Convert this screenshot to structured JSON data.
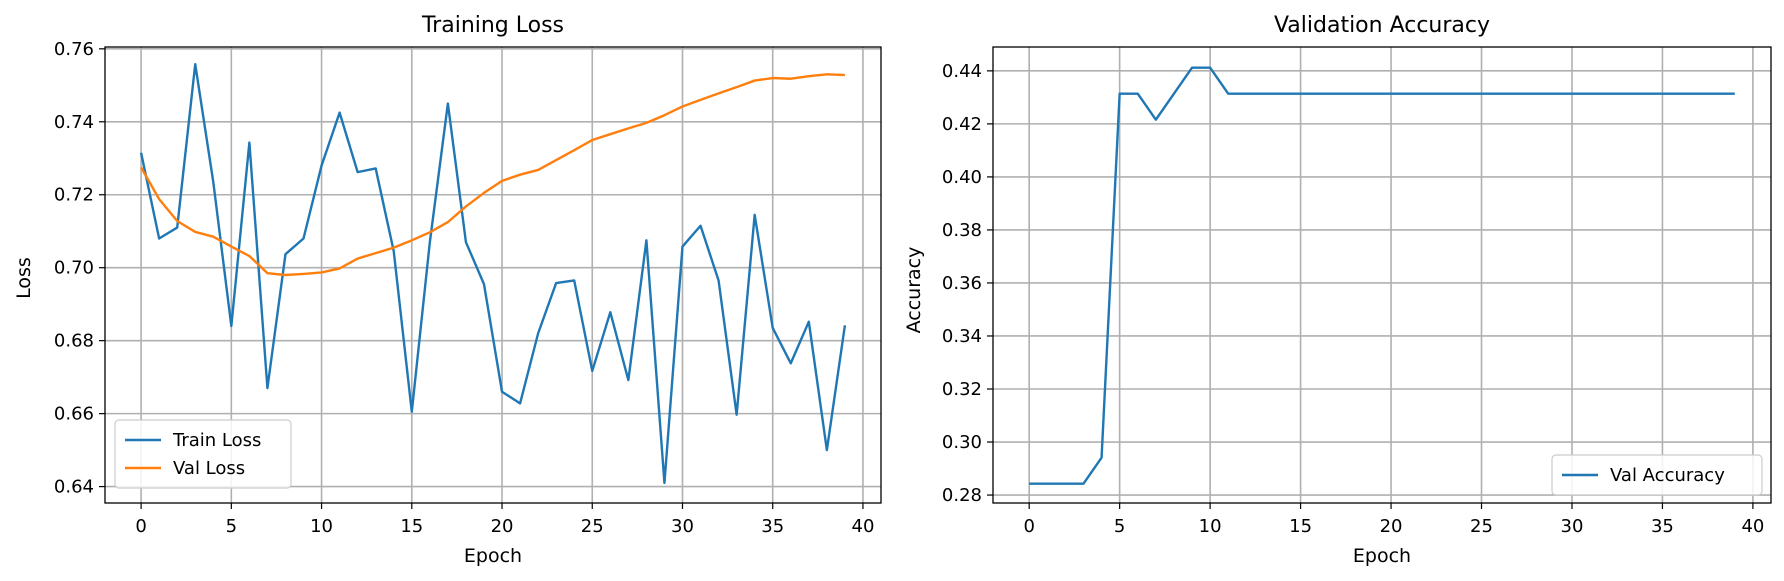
{
  "colors": {
    "blue": "#1f77b4",
    "orange": "#ff7f0e",
    "grid": "#b0b0b0"
  },
  "chart_data": [
    {
      "type": "line",
      "title": "Training Loss",
      "xlabel": "Epoch",
      "ylabel": "Loss",
      "grid": true,
      "legend_position": "lower-left",
      "xlim": [
        -2,
        41
      ],
      "ylim": [
        0.6355,
        0.7605
      ],
      "xticks": [
        "0",
        "5",
        "10",
        "15",
        "20",
        "25",
        "30",
        "35",
        "40"
      ],
      "yticks": [
        "0.64",
        "0.66",
        "0.68",
        "0.70",
        "0.72",
        "0.74",
        "0.76"
      ],
      "x": [
        0,
        1,
        2,
        3,
        4,
        5,
        6,
        7,
        8,
        9,
        10,
        11,
        12,
        13,
        14,
        15,
        16,
        17,
        18,
        19,
        20,
        21,
        22,
        23,
        24,
        25,
        26,
        27,
        28,
        29,
        30,
        31,
        32,
        33,
        34,
        35,
        36,
        37,
        38,
        39
      ],
      "series": [
        {
          "name": "Train Loss",
          "color": "#1f77b4",
          "values": [
            0.7315,
            0.708,
            0.711,
            0.7558,
            0.7235,
            0.684,
            0.7343,
            0.667,
            0.7037,
            0.708,
            0.728,
            0.7425,
            0.7262,
            0.7272,
            0.7045,
            0.6605,
            0.707,
            0.745,
            0.707,
            0.6955,
            0.666,
            0.6628,
            0.682,
            0.6958,
            0.6965,
            0.6717,
            0.6878,
            0.6692,
            0.7075,
            0.641,
            0.7058,
            0.7115,
            0.6965,
            0.6597,
            0.7145,
            0.6835,
            0.6738,
            0.6852,
            0.65,
            0.6842
          ]
        },
        {
          "name": "Val Loss",
          "color": "#ff7f0e",
          "values": [
            0.7275,
            0.7188,
            0.7128,
            0.7098,
            0.7085,
            0.7058,
            0.7032,
            0.6985,
            0.698,
            0.6983,
            0.6987,
            0.6998,
            0.7025,
            0.704,
            0.7055,
            0.7075,
            0.7097,
            0.7125,
            0.7168,
            0.7205,
            0.7238,
            0.7255,
            0.7268,
            0.7295,
            0.7322,
            0.735,
            0.7366,
            0.7382,
            0.7397,
            0.7418,
            0.7442,
            0.746,
            0.7478,
            0.7495,
            0.7513,
            0.752,
            0.7518,
            0.7525,
            0.753,
            0.7528
          ]
        }
      ]
    },
    {
      "type": "line",
      "title": "Validation Accuracy",
      "xlabel": "Epoch",
      "ylabel": "Accuracy",
      "grid": true,
      "legend_position": "lower-right",
      "xlim": [
        -2,
        41
      ],
      "ylim": [
        0.277,
        0.449
      ],
      "xticks": [
        "0",
        "5",
        "10",
        "15",
        "20",
        "25",
        "30",
        "35",
        "40"
      ],
      "yticks": [
        "0.28",
        "0.30",
        "0.32",
        "0.34",
        "0.36",
        "0.38",
        "0.40",
        "0.42",
        "0.44"
      ],
      "x": [
        0,
        1,
        2,
        3,
        4,
        5,
        6,
        7,
        8,
        9,
        10,
        11,
        12,
        13,
        14,
        15,
        16,
        17,
        18,
        19,
        20,
        21,
        22,
        23,
        24,
        25,
        26,
        27,
        28,
        29,
        30,
        31,
        32,
        33,
        34,
        35,
        36,
        37,
        38,
        39
      ],
      "series": [
        {
          "name": "Val Accuracy",
          "color": "#1f77b4",
          "values": [
            0.2843,
            0.2843,
            0.2843,
            0.2843,
            0.2941,
            0.4314,
            0.4314,
            0.4216,
            0.4314,
            0.4412,
            0.4412,
            0.4314,
            0.4314,
            0.4314,
            0.4314,
            0.4314,
            0.4314,
            0.4314,
            0.4314,
            0.4314,
            0.4314,
            0.4314,
            0.4314,
            0.4314,
            0.4314,
            0.4314,
            0.4314,
            0.4314,
            0.4314,
            0.4314,
            0.4314,
            0.4314,
            0.4314,
            0.4314,
            0.4314,
            0.4314,
            0.4314,
            0.4314,
            0.4314,
            0.4314
          ]
        }
      ]
    }
  ]
}
